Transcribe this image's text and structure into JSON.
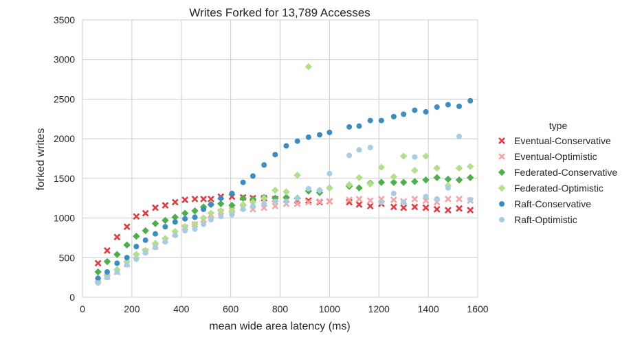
{
  "chart_data": {
    "type": "scatter",
    "title": "Writes Forked for 13,789 Accesses",
    "xlabel": "mean wide area latency (ms)",
    "ylabel": "forked writes",
    "xlim": [
      0,
      1600
    ],
    "ylim": [
      0,
      3500
    ],
    "xticks": [
      "0",
      "200",
      "400",
      "600",
      "800",
      "1000",
      "1200",
      "1400",
      "1600"
    ],
    "yticks": [
      "0",
      "500",
      "1000",
      "1500",
      "2000",
      "2500",
      "3000",
      "3500"
    ],
    "grid": true,
    "legend_title": "type",
    "legend_position": "right",
    "series": [
      {
        "name": "Eventual-Conservative",
        "color": "#e3393f",
        "marker": "x",
        "points": [
          [
            63,
            430
          ],
          [
            100,
            590
          ],
          [
            140,
            760
          ],
          [
            180,
            890
          ],
          [
            218,
            1020
          ],
          [
            255,
            1060
          ],
          [
            295,
            1130
          ],
          [
            335,
            1160
          ],
          [
            375,
            1200
          ],
          [
            415,
            1230
          ],
          [
            455,
            1240
          ],
          [
            490,
            1240
          ],
          [
            520,
            1240
          ],
          [
            560,
            1270
          ],
          [
            605,
            1270
          ],
          [
            650,
            1260
          ],
          [
            690,
            1250
          ],
          [
            735,
            1250
          ],
          [
            780,
            1240
          ],
          [
            825,
            1230
          ],
          [
            870,
            1220
          ],
          [
            915,
            1220
          ],
          [
            960,
            1200
          ],
          [
            1000,
            1210
          ],
          [
            1080,
            1200
          ],
          [
            1120,
            1170
          ],
          [
            1165,
            1150
          ],
          [
            1210,
            1180
          ],
          [
            1260,
            1140
          ],
          [
            1300,
            1130
          ],
          [
            1345,
            1140
          ],
          [
            1390,
            1130
          ],
          [
            1435,
            1110
          ],
          [
            1480,
            1100
          ],
          [
            1525,
            1120
          ],
          [
            1570,
            1100
          ]
        ]
      },
      {
        "name": "Eventual-Optimistic",
        "color": "#f5a3a6",
        "marker": "x",
        "points": [
          [
            63,
            210
          ],
          [
            100,
            260
          ],
          [
            140,
            320
          ],
          [
            180,
            420
          ],
          [
            218,
            520
          ],
          [
            255,
            580
          ],
          [
            295,
            640
          ],
          [
            335,
            720
          ],
          [
            375,
            800
          ],
          [
            415,
            880
          ],
          [
            455,
            920
          ],
          [
            490,
            980
          ],
          [
            520,
            1040
          ],
          [
            560,
            1080
          ],
          [
            605,
            1100
          ],
          [
            650,
            1130
          ],
          [
            690,
            1110
          ],
          [
            735,
            1130
          ],
          [
            780,
            1150
          ],
          [
            825,
            1180
          ],
          [
            870,
            1180
          ],
          [
            915,
            1200
          ],
          [
            960,
            1210
          ],
          [
            1000,
            1210
          ],
          [
            1080,
            1230
          ],
          [
            1120,
            1240
          ],
          [
            1165,
            1220
          ],
          [
            1210,
            1240
          ],
          [
            1260,
            1230
          ],
          [
            1300,
            1210
          ],
          [
            1345,
            1240
          ],
          [
            1390,
            1220
          ],
          [
            1435,
            1200
          ],
          [
            1480,
            1240
          ],
          [
            1525,
            1240
          ],
          [
            1570,
            1220
          ]
        ]
      },
      {
        "name": "Federated-Conservative",
        "color": "#4daf4a",
        "marker": "diamond",
        "points": [
          [
            63,
            320
          ],
          [
            100,
            450
          ],
          [
            140,
            540
          ],
          [
            180,
            660
          ],
          [
            218,
            770
          ],
          [
            255,
            840
          ],
          [
            295,
            930
          ],
          [
            335,
            970
          ],
          [
            375,
            1010
          ],
          [
            415,
            1060
          ],
          [
            455,
            1090
          ],
          [
            490,
            1140
          ],
          [
            520,
            1170
          ],
          [
            560,
            1180
          ],
          [
            605,
            1160
          ],
          [
            650,
            1250
          ],
          [
            690,
            1240
          ],
          [
            735,
            1260
          ],
          [
            780,
            1250
          ],
          [
            825,
            1260
          ],
          [
            870,
            1250
          ],
          [
            915,
            1340
          ],
          [
            960,
            1320
          ],
          [
            1000,
            1380
          ],
          [
            1080,
            1400
          ],
          [
            1120,
            1380
          ],
          [
            1165,
            1440
          ],
          [
            1210,
            1450
          ],
          [
            1260,
            1450
          ],
          [
            1300,
            1450
          ],
          [
            1345,
            1460
          ],
          [
            1390,
            1480
          ],
          [
            1435,
            1510
          ],
          [
            1480,
            1490
          ],
          [
            1525,
            1480
          ],
          [
            1570,
            1510
          ]
        ]
      },
      {
        "name": "Federated-Optimistic",
        "color": "#b2df8a",
        "marker": "diamond",
        "points": [
          [
            63,
            200
          ],
          [
            100,
            270
          ],
          [
            140,
            350
          ],
          [
            180,
            450
          ],
          [
            218,
            540
          ],
          [
            255,
            590
          ],
          [
            295,
            680
          ],
          [
            335,
            740
          ],
          [
            375,
            830
          ],
          [
            415,
            890
          ],
          [
            455,
            920
          ],
          [
            490,
            1000
          ],
          [
            520,
            1060
          ],
          [
            560,
            1090
          ],
          [
            605,
            1090
          ],
          [
            650,
            1170
          ],
          [
            690,
            1200
          ],
          [
            735,
            1250
          ],
          [
            780,
            1350
          ],
          [
            825,
            1330
          ],
          [
            870,
            1540
          ],
          [
            915,
            2910
          ],
          [
            960,
            1350
          ],
          [
            1000,
            1380
          ],
          [
            1080,
            1420
          ],
          [
            1120,
            1510
          ],
          [
            1165,
            1430
          ],
          [
            1210,
            1640
          ],
          [
            1260,
            1520
          ],
          [
            1300,
            1780
          ],
          [
            1345,
            1600
          ],
          [
            1390,
            1780
          ],
          [
            1435,
            1630
          ],
          [
            1480,
            1410
          ],
          [
            1525,
            1630
          ],
          [
            1570,
            1650
          ]
        ]
      },
      {
        "name": "Raft-Conservative",
        "color": "#3a8cc1",
        "marker": "circle",
        "points": [
          [
            63,
            240
          ],
          [
            100,
            320
          ],
          [
            140,
            430
          ],
          [
            180,
            500
          ],
          [
            218,
            640
          ],
          [
            255,
            720
          ],
          [
            295,
            800
          ],
          [
            335,
            890
          ],
          [
            375,
            950
          ],
          [
            415,
            990
          ],
          [
            455,
            1010
          ],
          [
            490,
            1110
          ],
          [
            520,
            1170
          ],
          [
            560,
            1250
          ],
          [
            605,
            1310
          ],
          [
            650,
            1450
          ],
          [
            690,
            1530
          ],
          [
            735,
            1670
          ],
          [
            780,
            1800
          ],
          [
            825,
            1910
          ],
          [
            870,
            1970
          ],
          [
            915,
            2020
          ],
          [
            960,
            2050
          ],
          [
            1000,
            2080
          ],
          [
            1080,
            2150
          ],
          [
            1120,
            2160
          ],
          [
            1165,
            2230
          ],
          [
            1210,
            2230
          ],
          [
            1260,
            2280
          ],
          [
            1300,
            2310
          ],
          [
            1345,
            2360
          ],
          [
            1390,
            2340
          ],
          [
            1435,
            2400
          ],
          [
            1480,
            2430
          ],
          [
            1525,
            2410
          ],
          [
            1570,
            2480
          ]
        ]
      },
      {
        "name": "Raft-Optimistic",
        "color": "#a6cee3",
        "marker": "circle",
        "points": [
          [
            63,
            180
          ],
          [
            100,
            250
          ],
          [
            140,
            320
          ],
          [
            180,
            410
          ],
          [
            218,
            480
          ],
          [
            255,
            560
          ],
          [
            295,
            630
          ],
          [
            335,
            700
          ],
          [
            375,
            780
          ],
          [
            415,
            840
          ],
          [
            455,
            860
          ],
          [
            490,
            920
          ],
          [
            520,
            980
          ],
          [
            560,
            1020
          ],
          [
            605,
            1040
          ],
          [
            650,
            1110
          ],
          [
            690,
            1150
          ],
          [
            735,
            1180
          ],
          [
            780,
            1210
          ],
          [
            825,
            1210
          ],
          [
            870,
            1250
          ],
          [
            915,
            1370
          ],
          [
            960,
            1350
          ],
          [
            1000,
            1560
          ],
          [
            1080,
            1790
          ],
          [
            1120,
            1860
          ],
          [
            1165,
            1890
          ],
          [
            1210,
            1200
          ],
          [
            1260,
            1310
          ],
          [
            1300,
            1200
          ],
          [
            1345,
            1770
          ],
          [
            1390,
            1270
          ],
          [
            1435,
            1240
          ],
          [
            1480,
            1380
          ],
          [
            1525,
            2030
          ],
          [
            1570,
            1230
          ]
        ]
      }
    ]
  }
}
